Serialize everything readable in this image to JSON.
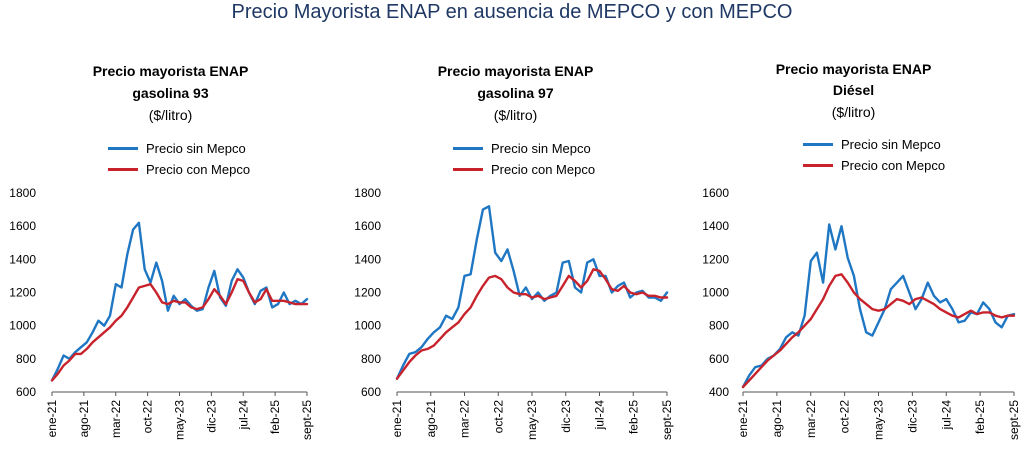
{
  "title": "Precio Mayorista ENAP en ausencia de MEPCO y con MEPCO",
  "colors": {
    "sin": "#1f77c4",
    "con": "#c8232c",
    "title": "#1f3864"
  },
  "chart_data": [
    {
      "type": "line",
      "title_lines": [
        "Precio mayorista ENAP",
        "gasolina 93",
        "($/litro)"
      ],
      "ylim": [
        600,
        1800
      ],
      "yticks": [
        "1800",
        "1600",
        "1400",
        "1200",
        "1000",
        "800",
        "600"
      ],
      "xtick_labels": [
        "ene-21",
        "ago-21",
        "mar-22",
        "oct-22",
        "may-23",
        "dic-23",
        "jul-24",
        "feb-25",
        "sept-25"
      ],
      "series": [
        {
          "name": "Precio sin Mepco",
          "color": "#1f77c4",
          "values": [
            670,
            740,
            820,
            800,
            840,
            870,
            900,
            960,
            1030,
            1000,
            1060,
            1250,
            1230,
            1430,
            1580,
            1620,
            1340,
            1260,
            1380,
            1270,
            1090,
            1180,
            1130,
            1160,
            1120,
            1090,
            1100,
            1230,
            1330,
            1170,
            1120,
            1270,
            1340,
            1290,
            1200,
            1130,
            1210,
            1230,
            1110,
            1130,
            1200,
            1130,
            1150,
            1130,
            1160
          ]
        },
        {
          "name": "Precio con Mepco",
          "color": "#c8232c",
          "values": [
            670,
            710,
            760,
            790,
            830,
            830,
            860,
            900,
            930,
            960,
            990,
            1030,
            1060,
            1110,
            1170,
            1230,
            1240,
            1250,
            1200,
            1140,
            1130,
            1150,
            1140,
            1140,
            1110,
            1100,
            1110,
            1160,
            1220,
            1180,
            1130,
            1200,
            1280,
            1270,
            1200,
            1140,
            1160,
            1220,
            1150,
            1150,
            1150,
            1140,
            1130,
            1130,
            1130
          ]
        }
      ]
    },
    {
      "type": "line",
      "title_lines": [
        "Precio mayorista ENAP",
        "gasolina 97",
        "($/litro)"
      ],
      "ylim": [
        600,
        1800
      ],
      "yticks": [
        "1800",
        "1600",
        "1400",
        "1200",
        "1000",
        "800",
        "600"
      ],
      "xtick_labels": [
        "ene-21",
        "ago-21",
        "mar-22",
        "oct-22",
        "may-23",
        "dic-23",
        "jul-24",
        "feb-25",
        "sept-25"
      ],
      "series": [
        {
          "name": "Precio sin Mepco",
          "color": "#1f77c4",
          "values": [
            680,
            760,
            830,
            840,
            870,
            920,
            960,
            990,
            1060,
            1040,
            1110,
            1300,
            1310,
            1520,
            1700,
            1720,
            1440,
            1390,
            1460,
            1330,
            1180,
            1230,
            1160,
            1200,
            1150,
            1180,
            1200,
            1380,
            1390,
            1230,
            1200,
            1380,
            1400,
            1300,
            1300,
            1200,
            1240,
            1260,
            1170,
            1200,
            1210,
            1170,
            1170,
            1150,
            1200
          ]
        },
        {
          "name": "Precio con Mepco",
          "color": "#c8232c",
          "values": [
            680,
            730,
            780,
            820,
            850,
            860,
            880,
            920,
            960,
            990,
            1020,
            1070,
            1110,
            1180,
            1240,
            1290,
            1300,
            1280,
            1230,
            1200,
            1190,
            1190,
            1170,
            1180,
            1160,
            1170,
            1180,
            1240,
            1300,
            1270,
            1230,
            1270,
            1340,
            1330,
            1280,
            1220,
            1210,
            1240,
            1200,
            1190,
            1200,
            1180,
            1180,
            1170,
            1170
          ]
        }
      ]
    },
    {
      "type": "line",
      "title_lines": [
        "Precio mayorista ENAP",
        "Diésel",
        "($/litro)"
      ],
      "ylim": [
        400,
        1600
      ],
      "yticks": [
        "1600",
        "1400",
        "1200",
        "1000",
        "800",
        "600",
        "400"
      ],
      "xtick_labels": [
        "ene-21",
        "ago-21",
        "mar-22",
        "oct-22",
        "may-23",
        "dic-23",
        "jul-24",
        "feb-25",
        "sept-25"
      ],
      "series": [
        {
          "name": "Precio sin Mepco",
          "color": "#1f77c4",
          "values": [
            430,
            500,
            550,
            560,
            600,
            620,
            660,
            730,
            760,
            740,
            860,
            1190,
            1240,
            1060,
            1410,
            1260,
            1400,
            1210,
            1100,
            900,
            760,
            740,
            820,
            900,
            1020,
            1060,
            1100,
            1000,
            900,
            960,
            1060,
            980,
            940,
            960,
            900,
            820,
            830,
            880,
            870,
            940,
            900,
            820,
            790,
            860,
            870
          ]
        },
        {
          "name": "Precio con Mepco",
          "color": "#c8232c",
          "values": [
            430,
            470,
            510,
            550,
            590,
            620,
            650,
            690,
            730,
            760,
            800,
            840,
            900,
            960,
            1040,
            1100,
            1110,
            1060,
            1000,
            960,
            930,
            900,
            890,
            900,
            930,
            960,
            950,
            930,
            960,
            970,
            950,
            930,
            900,
            880,
            860,
            850,
            870,
            890,
            870,
            880,
            880,
            860,
            850,
            860,
            860
          ]
        }
      ]
    }
  ]
}
